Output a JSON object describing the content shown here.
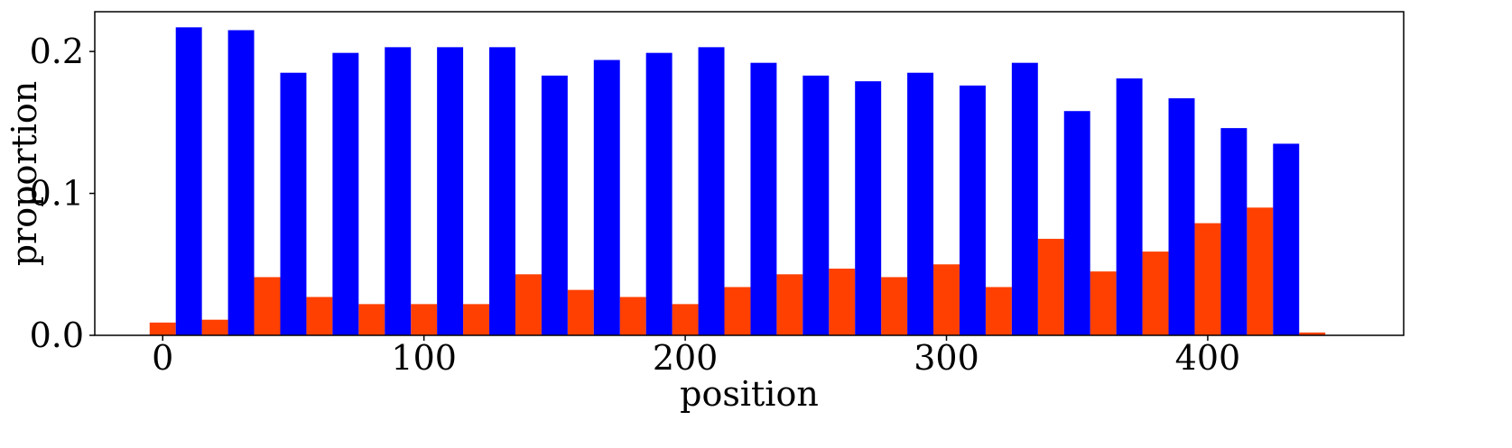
{
  "chart_data": {
    "type": "bar",
    "xlabel": "position",
    "ylabel": "proportion",
    "xlim": [
      -26,
      475
    ],
    "ylim": [
      0,
      0.228
    ],
    "x_ticks": [
      0,
      100,
      200,
      300,
      400
    ],
    "x_tick_labels": [
      "0",
      "100",
      "200",
      "300",
      "400"
    ],
    "y_ticks": [
      0.0,
      0.1,
      0.2
    ],
    "y_tick_labels": [
      "0.0",
      "0.1",
      "0.2"
    ],
    "bin_width": 20,
    "bar_width": 10,
    "grid": false,
    "series": [
      {
        "color": "#ff4000",
        "bins": [
          0,
          20,
          40,
          60,
          80,
          100,
          120,
          140,
          160,
          180,
          200,
          220,
          240,
          260,
          280,
          300,
          320,
          340,
          360,
          380,
          400,
          420,
          440
        ],
        "values": [
          0.009,
          0.011,
          0.041,
          0.027,
          0.022,
          0.022,
          0.022,
          0.043,
          0.032,
          0.027,
          0.022,
          0.034,
          0.043,
          0.047,
          0.041,
          0.05,
          0.034,
          0.068,
          0.045,
          0.059,
          0.079,
          0.09,
          0.002
        ]
      },
      {
        "color": "#0000ff",
        "bins": [
          0,
          20,
          40,
          60,
          80,
          100,
          120,
          140,
          160,
          180,
          200,
          220,
          240,
          260,
          280,
          300,
          320,
          340,
          360,
          380,
          400,
          420
        ],
        "values": [
          0.217,
          0.215,
          0.185,
          0.199,
          0.203,
          0.203,
          0.203,
          0.183,
          0.194,
          0.199,
          0.203,
          0.192,
          0.183,
          0.179,
          0.185,
          0.176,
          0.192,
          0.158,
          0.181,
          0.167,
          0.146,
          0.135
        ]
      }
    ]
  }
}
